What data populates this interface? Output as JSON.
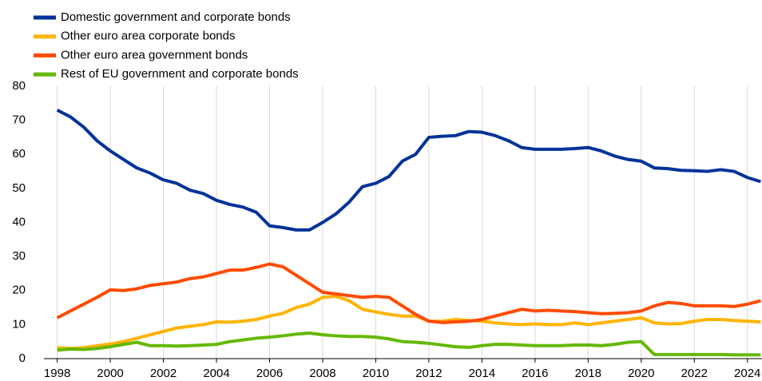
{
  "chart_data": {
    "type": "line",
    "x": [
      1998,
      1998.5,
      1999,
      1999.5,
      2000,
      2000.5,
      2001,
      2001.5,
      2002,
      2002.5,
      2003,
      2003.5,
      2004,
      2004.5,
      2005,
      2005.5,
      2006,
      2006.5,
      2007,
      2007.5,
      2008,
      2008.5,
      2009,
      2009.5,
      2010,
      2010.5,
      2011,
      2011.5,
      2012,
      2012.5,
      2013,
      2013.5,
      2014,
      2014.5,
      2015,
      2015.5,
      2016,
      2016.5,
      2017,
      2017.5,
      2018,
      2018.5,
      2019,
      2019.5,
      2020,
      2020.5,
      2021,
      2021.5,
      2022,
      2022.5,
      2023,
      2023.5,
      2024,
      2024.5
    ],
    "series": [
      {
        "name": "Domestic government and corporate bonds",
        "color": "#003299",
        "values": [
          73,
          71,
          68,
          64,
          61,
          58.5,
          56,
          54.5,
          52.5,
          51.5,
          49.5,
          48.5,
          46.5,
          45.3,
          44.5,
          43,
          39,
          38.5,
          37.8,
          37.8,
          40,
          42.5,
          46,
          50.5,
          51.5,
          53.5,
          58,
          60,
          65,
          65.3,
          65.5,
          66.7,
          66.5,
          65.5,
          64,
          62,
          61.5,
          61.5,
          61.5,
          61.7,
          62,
          61,
          59.5,
          58.5,
          58,
          56,
          55.8,
          55.3,
          55.2,
          55,
          55.5,
          55,
          53.2,
          52
        ]
      },
      {
        "name": "Other euro area corporate bonds",
        "color": "#ffb400",
        "values": [
          3.2,
          3,
          3.2,
          3.8,
          4.3,
          5,
          6,
          7,
          8,
          9,
          9.5,
          10,
          10.8,
          10.7,
          11,
          11.5,
          12.5,
          13.3,
          15,
          16,
          18,
          18.3,
          17,
          14.5,
          13.7,
          13,
          12.5,
          12.5,
          11,
          11,
          11.5,
          11.2,
          11,
          10.5,
          10.2,
          10,
          10.2,
          10,
          10,
          10.5,
          10,
          10.5,
          11,
          11.5,
          12,
          10.5,
          10.2,
          10.3,
          11,
          11.5,
          11.5,
          11.2,
          11,
          10.8
        ]
      },
      {
        "name": "Other euro area government bonds",
        "color": "#ff4b00",
        "values": [
          12,
          14,
          16,
          18,
          20.2,
          20,
          20.5,
          21.5,
          22,
          22.5,
          23.5,
          24,
          25,
          26,
          26,
          26.8,
          27.8,
          27,
          24.5,
          22,
          19.5,
          19,
          18.5,
          18,
          18.3,
          18,
          15.5,
          13,
          11,
          10.6,
          10.8,
          11,
          11.5,
          12.5,
          13.5,
          14.5,
          14,
          14.2,
          14,
          13.8,
          13.5,
          13.2,
          13.3,
          13.5,
          14,
          15.5,
          16.5,
          16.2,
          15.5,
          15.5,
          15.5,
          15.3,
          16,
          17
        ]
      },
      {
        "name": "Rest of EU government and corporate bonds",
        "color": "#65b800",
        "values": [
          2.5,
          2.8,
          2.7,
          3,
          3.5,
          4.2,
          4.8,
          3.8,
          3.8,
          3.7,
          3.8,
          4,
          4.2,
          5,
          5.5,
          6,
          6.3,
          6.7,
          7.2,
          7.5,
          7,
          6.7,
          6.5,
          6.5,
          6.3,
          5.8,
          5,
          4.8,
          4.5,
          4,
          3.5,
          3.3,
          3.8,
          4.2,
          4.2,
          4,
          3.8,
          3.8,
          3.8,
          4,
          4,
          3.8,
          4.2,
          4.8,
          5,
          1.2,
          1.2,
          1.2,
          1.2,
          1.2,
          1.2,
          1.1,
          1.1,
          1.1
        ]
      }
    ],
    "xlim": [
      1997.5,
      2024.55
    ],
    "xticks": [
      1998,
      2000,
      2002,
      2004,
      2006,
      2008,
      2010,
      2012,
      2014,
      2016,
      2018,
      2020,
      2022,
      2024
    ],
    "ylim": [
      0,
      80
    ],
    "yticks": [
      0,
      10,
      20,
      30,
      40,
      50,
      60,
      70,
      80
    ],
    "grid": "vertical",
    "legend": "top-left"
  }
}
